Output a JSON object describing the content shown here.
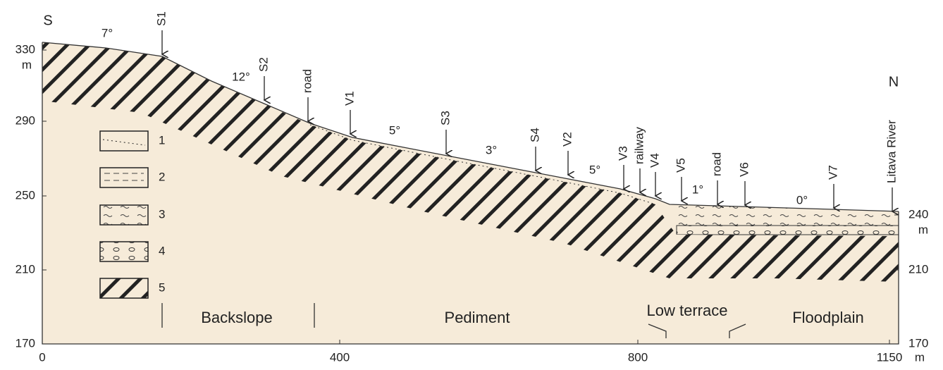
{
  "axes": {
    "left_ticks": [
      "330",
      "290",
      "250",
      "210",
      "170"
    ],
    "left_unit": "m",
    "right_ticks": [
      "240",
      "210",
      "170"
    ],
    "right_unit": "m",
    "x_ticks": [
      "0",
      "400",
      "800",
      "1150"
    ],
    "x_unit": "m"
  },
  "directions": [
    "S",
    "N"
  ],
  "slopes": [
    "7°",
    "12°",
    "5°",
    "3°",
    "5°",
    "1°",
    "0°"
  ],
  "sites": [
    "S1",
    "S2",
    "road",
    "V1",
    "S3",
    "S4",
    "V2",
    "V3",
    "railway",
    "V4",
    "V5",
    "road",
    "V6",
    "V7",
    "Litava River"
  ],
  "legend": [
    "1",
    "2",
    "3",
    "4",
    "5"
  ],
  "zones": [
    "Backslope",
    "Pediment",
    "Low terrace",
    "Floodplain"
  ]
}
